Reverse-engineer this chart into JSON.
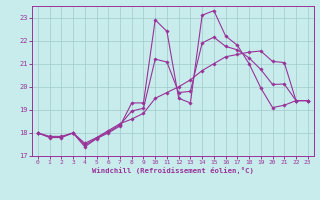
{
  "xlabel": "Windchill (Refroidissement éolien,°C)",
  "bg_color": "#c8ecec",
  "grid_color": "#a0caca",
  "line_color": "#993399",
  "xlim": [
    -0.5,
    23.5
  ],
  "ylim": [
    17,
    23.5
  ],
  "yticks": [
    17,
    18,
    19,
    20,
    21,
    22,
    23
  ],
  "xticks": [
    0,
    1,
    2,
    3,
    4,
    5,
    6,
    7,
    8,
    9,
    10,
    11,
    12,
    13,
    14,
    15,
    16,
    17,
    18,
    19,
    20,
    21,
    22,
    23
  ],
  "series": [
    {
      "x": [
        0,
        1,
        2,
        3,
        4,
        5,
        6,
        7,
        8,
        9,
        10,
        11,
        12,
        13,
        14,
        15,
        16,
        17,
        18,
        19,
        20,
        21,
        22,
        23
      ],
      "y": [
        18.0,
        17.8,
        17.8,
        18.0,
        17.4,
        17.75,
        18.0,
        18.3,
        19.3,
        19.3,
        22.9,
        22.4,
        19.5,
        19.3,
        23.1,
        23.3,
        22.2,
        21.8,
        21.0,
        19.95,
        19.1,
        19.2,
        19.4,
        19.4
      ]
    },
    {
      "x": [
        0,
        1,
        2,
        3,
        4,
        5,
        6,
        7,
        8,
        9,
        10,
        11,
        12,
        13,
        14,
        15,
        16,
        17,
        18,
        19,
        20,
        21,
        22,
        23
      ],
      "y": [
        18.0,
        17.85,
        17.85,
        18.0,
        17.55,
        17.8,
        18.1,
        18.4,
        18.6,
        18.85,
        19.5,
        19.75,
        20.0,
        20.3,
        20.7,
        21.0,
        21.3,
        21.4,
        21.5,
        21.55,
        21.1,
        21.05,
        19.4,
        19.4
      ]
    },
    {
      "x": [
        0,
        1,
        2,
        3,
        4,
        5,
        6,
        7,
        8,
        9,
        10,
        11,
        12,
        13,
        14,
        15,
        16,
        17,
        18,
        19,
        20,
        21,
        22,
        23
      ],
      "y": [
        18.0,
        17.82,
        17.82,
        18.0,
        17.47,
        17.77,
        18.05,
        18.35,
        18.95,
        19.07,
        21.2,
        21.07,
        19.75,
        19.8,
        21.9,
        22.15,
        21.75,
        21.6,
        21.25,
        20.75,
        20.1,
        20.12,
        19.4,
        19.4
      ]
    }
  ]
}
